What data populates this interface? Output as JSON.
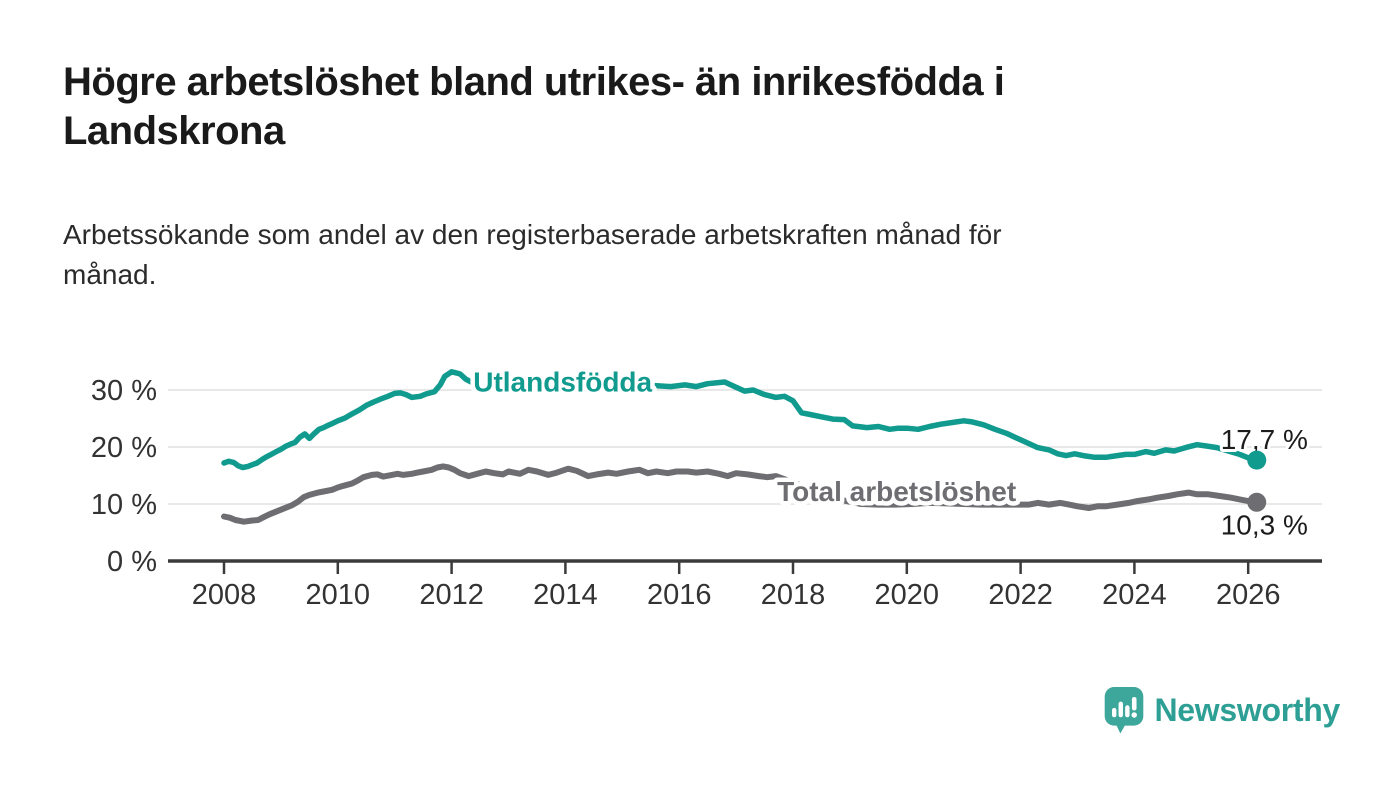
{
  "header": {
    "title_lines": [
      "Högre arbetslöshet bland utrikes- än inrikesfödda i",
      "Landskrona"
    ],
    "subtitle_lines": [
      "Arbetssökande som andel av den registerbaserade arbetskraften månad för",
      "månad."
    ]
  },
  "colors": {
    "series_foreign_born": "#119a8e",
    "series_total": "#6e6e72",
    "grid": "#e0e0e0",
    "axis": "#3b3b3b",
    "tick_text": "#333333",
    "value_text": "#1c1c1c",
    "brand": "#2d9f94",
    "brand_icon": "#3ea79c"
  },
  "chart_data": {
    "type": "line",
    "title": "Högre arbetslöshet bland utrikes- än inrikesfödda i Landskrona",
    "subtitle": "Arbetssökande som andel av den registerbaserade arbetskraften månad för månad.",
    "xlabel": "",
    "ylabel": "",
    "grid": true,
    "legend_position": "inline-labels",
    "x_axis": {
      "ticks": [
        2008,
        2010,
        2012,
        2014,
        2016,
        2018,
        2020,
        2022,
        2024,
        2026
      ],
      "range_years": [
        2007.0,
        2027.3
      ]
    },
    "y_axis": {
      "unit": "%",
      "ylim": [
        0,
        35
      ],
      "ticks": [
        {
          "label": "0 %",
          "value": 0
        },
        {
          "label": "10 %",
          "value": 10
        },
        {
          "label": "20 %",
          "value": 20
        },
        {
          "label": "30 %",
          "value": 30
        }
      ]
    },
    "series": [
      {
        "name": "Utlandsfödda",
        "color": "#119a8e",
        "line_width": 5.5,
        "end_label": "17,7 %",
        "end_value": 17.7,
        "label_anchor": {
          "year": 2012.38,
          "value": 29.7
        },
        "end_label_side": "above",
        "points": [
          [
            2008.0,
            17.2
          ],
          [
            2008.08,
            17.5
          ],
          [
            2008.17,
            17.3
          ],
          [
            2008.25,
            16.7
          ],
          [
            2008.33,
            16.4
          ],
          [
            2008.42,
            16.6
          ],
          [
            2008.5,
            16.9
          ],
          [
            2008.58,
            17.2
          ],
          [
            2008.67,
            17.8
          ],
          [
            2008.75,
            18.3
          ],
          [
            2008.83,
            18.7
          ],
          [
            2008.92,
            19.2
          ],
          [
            2009.0,
            19.6
          ],
          [
            2009.08,
            20.1
          ],
          [
            2009.17,
            20.5
          ],
          [
            2009.25,
            20.8
          ],
          [
            2009.33,
            21.7
          ],
          [
            2009.42,
            22.3
          ],
          [
            2009.5,
            21.5
          ],
          [
            2009.58,
            22.3
          ],
          [
            2009.67,
            23.1
          ],
          [
            2009.75,
            23.4
          ],
          [
            2009.83,
            23.8
          ],
          [
            2009.92,
            24.2
          ],
          [
            2010.0,
            24.6
          ],
          [
            2010.13,
            25.1
          ],
          [
            2010.25,
            25.8
          ],
          [
            2010.38,
            26.5
          ],
          [
            2010.5,
            27.3
          ],
          [
            2010.63,
            27.9
          ],
          [
            2010.75,
            28.4
          ],
          [
            2010.88,
            28.9
          ],
          [
            2011.0,
            29.4
          ],
          [
            2011.1,
            29.5
          ],
          [
            2011.2,
            29.2
          ],
          [
            2011.3,
            28.7
          ],
          [
            2011.45,
            28.9
          ],
          [
            2011.55,
            29.3
          ],
          [
            2011.7,
            29.7
          ],
          [
            2011.8,
            30.9
          ],
          [
            2011.88,
            32.4
          ],
          [
            2012.0,
            33.2
          ],
          [
            2012.08,
            33.0
          ],
          [
            2012.15,
            32.8
          ],
          [
            2012.25,
            31.9
          ],
          [
            2012.4,
            31.1
          ],
          [
            2012.6,
            30.3
          ],
          [
            2012.8,
            30.0
          ],
          [
            2013.0,
            29.8
          ],
          [
            2013.3,
            29.5
          ],
          [
            2013.6,
            30.1
          ],
          [
            2013.9,
            30.6
          ],
          [
            2014.2,
            31.0
          ],
          [
            2014.5,
            31.2
          ],
          [
            2014.8,
            31.1
          ],
          [
            2015.1,
            31.0
          ],
          [
            2015.5,
            30.8
          ],
          [
            2015.85,
            30.6
          ],
          [
            2016.1,
            30.9
          ],
          [
            2016.3,
            30.6
          ],
          [
            2016.5,
            31.1
          ],
          [
            2016.8,
            31.4
          ],
          [
            2016.95,
            30.7
          ],
          [
            2017.15,
            29.8
          ],
          [
            2017.3,
            30.0
          ],
          [
            2017.5,
            29.2
          ],
          [
            2017.7,
            28.7
          ],
          [
            2017.85,
            28.9
          ],
          [
            2018.0,
            28.1
          ],
          [
            2018.15,
            26.0
          ],
          [
            2018.3,
            25.7
          ],
          [
            2018.5,
            25.3
          ],
          [
            2018.7,
            24.9
          ],
          [
            2018.9,
            24.8
          ],
          [
            2019.05,
            23.7
          ],
          [
            2019.3,
            23.4
          ],
          [
            2019.5,
            23.6
          ],
          [
            2019.7,
            23.1
          ],
          [
            2019.85,
            23.3
          ],
          [
            2020.0,
            23.3
          ],
          [
            2020.2,
            23.1
          ],
          [
            2020.4,
            23.6
          ],
          [
            2020.6,
            24.0
          ],
          [
            2020.8,
            24.3
          ],
          [
            2021.0,
            24.6
          ],
          [
            2021.15,
            24.4
          ],
          [
            2021.35,
            23.9
          ],
          [
            2021.55,
            23.1
          ],
          [
            2021.75,
            22.4
          ],
          [
            2021.9,
            21.7
          ],
          [
            2022.1,
            20.8
          ],
          [
            2022.3,
            19.9
          ],
          [
            2022.5,
            19.5
          ],
          [
            2022.65,
            18.8
          ],
          [
            2022.8,
            18.5
          ],
          [
            2022.95,
            18.8
          ],
          [
            2023.1,
            18.5
          ],
          [
            2023.3,
            18.2
          ],
          [
            2023.5,
            18.2
          ],
          [
            2023.7,
            18.5
          ],
          [
            2023.85,
            18.7
          ],
          [
            2024.0,
            18.7
          ],
          [
            2024.2,
            19.2
          ],
          [
            2024.35,
            18.9
          ],
          [
            2024.55,
            19.5
          ],
          [
            2024.7,
            19.3
          ],
          [
            2024.9,
            19.9
          ],
          [
            2025.1,
            20.4
          ],
          [
            2025.25,
            20.2
          ],
          [
            2025.45,
            19.9
          ],
          [
            2025.65,
            19.3
          ],
          [
            2025.85,
            18.7
          ],
          [
            2026.0,
            18.1
          ],
          [
            2026.15,
            17.7
          ]
        ]
      },
      {
        "name": "Total arbetslöshet",
        "color": "#6e6e72",
        "line_width": 6,
        "end_label": "10,3 %",
        "end_value": 10.3,
        "label_anchor": {
          "year": 2017.72,
          "value": 10.5
        },
        "end_label_side": "below",
        "points": [
          [
            2008.0,
            7.8
          ],
          [
            2008.1,
            7.6
          ],
          [
            2008.2,
            7.2
          ],
          [
            2008.35,
            6.9
          ],
          [
            2008.5,
            7.1
          ],
          [
            2008.6,
            7.2
          ],
          [
            2008.7,
            7.7
          ],
          [
            2008.8,
            8.2
          ],
          [
            2008.95,
            8.8
          ],
          [
            2009.05,
            9.2
          ],
          [
            2009.2,
            9.8
          ],
          [
            2009.3,
            10.4
          ],
          [
            2009.4,
            11.2
          ],
          [
            2009.5,
            11.6
          ],
          [
            2009.65,
            12.0
          ],
          [
            2009.75,
            12.2
          ],
          [
            2009.9,
            12.5
          ],
          [
            2010.0,
            12.9
          ],
          [
            2010.1,
            13.2
          ],
          [
            2010.25,
            13.6
          ],
          [
            2010.35,
            14.1
          ],
          [
            2010.45,
            14.7
          ],
          [
            2010.6,
            15.1
          ],
          [
            2010.7,
            15.2
          ],
          [
            2010.8,
            14.8
          ],
          [
            2010.95,
            15.1
          ],
          [
            2011.05,
            15.3
          ],
          [
            2011.15,
            15.1
          ],
          [
            2011.3,
            15.3
          ],
          [
            2011.4,
            15.5
          ],
          [
            2011.5,
            15.7
          ],
          [
            2011.65,
            16.0
          ],
          [
            2011.75,
            16.4
          ],
          [
            2011.85,
            16.6
          ],
          [
            2011.95,
            16.4
          ],
          [
            2012.05,
            16.0
          ],
          [
            2012.15,
            15.4
          ],
          [
            2012.3,
            14.9
          ],
          [
            2012.45,
            15.3
          ],
          [
            2012.6,
            15.7
          ],
          [
            2012.75,
            15.4
          ],
          [
            2012.9,
            15.2
          ],
          [
            2013.0,
            15.7
          ],
          [
            2013.2,
            15.3
          ],
          [
            2013.35,
            16.0
          ],
          [
            2013.5,
            15.7
          ],
          [
            2013.7,
            15.1
          ],
          [
            2013.85,
            15.5
          ],
          [
            2014.05,
            16.2
          ],
          [
            2014.2,
            15.8
          ],
          [
            2014.4,
            14.9
          ],
          [
            2014.55,
            15.2
          ],
          [
            2014.75,
            15.5
          ],
          [
            2014.9,
            15.3
          ],
          [
            2015.1,
            15.7
          ],
          [
            2015.3,
            16.0
          ],
          [
            2015.45,
            15.4
          ],
          [
            2015.6,
            15.7
          ],
          [
            2015.8,
            15.4
          ],
          [
            2015.95,
            15.7
          ],
          [
            2016.15,
            15.7
          ],
          [
            2016.3,
            15.5
          ],
          [
            2016.5,
            15.7
          ],
          [
            2016.7,
            15.3
          ],
          [
            2016.85,
            14.9
          ],
          [
            2017.0,
            15.4
          ],
          [
            2017.2,
            15.2
          ],
          [
            2017.4,
            14.9
          ],
          [
            2017.55,
            14.7
          ],
          [
            2017.7,
            14.9
          ],
          [
            2018.0,
            13.8
          ],
          [
            2018.3,
            12.6
          ],
          [
            2018.6,
            11.4
          ],
          [
            2018.9,
            10.6
          ],
          [
            2019.2,
            10.0
          ],
          [
            2019.5,
            9.9
          ],
          [
            2019.8,
            9.9
          ],
          [
            2020.1,
            10.0
          ],
          [
            2020.4,
            10.2
          ],
          [
            2020.7,
            10.1
          ],
          [
            2021.0,
            10.0
          ],
          [
            2021.3,
            9.9
          ],
          [
            2021.6,
            9.9
          ],
          [
            2021.9,
            9.9
          ],
          [
            2022.15,
            9.9
          ],
          [
            2022.3,
            10.2
          ],
          [
            2022.5,
            9.9
          ],
          [
            2022.7,
            10.2
          ],
          [
            2022.85,
            9.9
          ],
          [
            2023.0,
            9.6
          ],
          [
            2023.2,
            9.3
          ],
          [
            2023.35,
            9.6
          ],
          [
            2023.5,
            9.6
          ],
          [
            2023.7,
            9.9
          ],
          [
            2023.9,
            10.2
          ],
          [
            2024.05,
            10.5
          ],
          [
            2024.25,
            10.8
          ],
          [
            2024.4,
            11.1
          ],
          [
            2024.6,
            11.4
          ],
          [
            2024.75,
            11.7
          ],
          [
            2024.95,
            12.0
          ],
          [
            2025.1,
            11.7
          ],
          [
            2025.3,
            11.7
          ],
          [
            2025.5,
            11.4
          ],
          [
            2025.7,
            11.1
          ],
          [
            2025.85,
            10.8
          ],
          [
            2026.0,
            10.5
          ],
          [
            2026.15,
            10.3
          ]
        ]
      }
    ]
  },
  "footer": {
    "brand_name": "Newsworthy"
  }
}
